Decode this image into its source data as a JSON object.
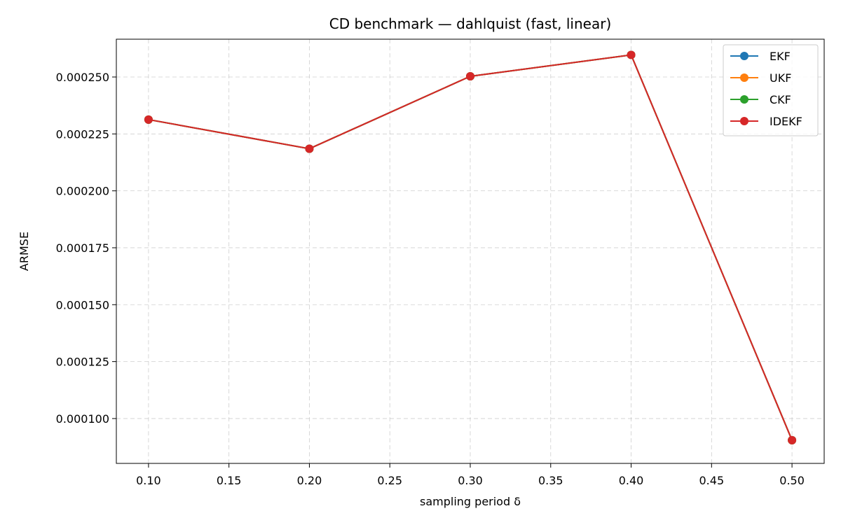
{
  "chart_data": {
    "type": "line",
    "title": "CD benchmark — dahlquist (fast, linear)",
    "xlabel": "sampling period δ",
    "ylabel": "ARMSE",
    "x": [
      0.1,
      0.2,
      0.3,
      0.4,
      0.5
    ],
    "xlim": [
      0.08,
      0.52
    ],
    "ylim": [
      8.03e-05,
      0.0002666
    ],
    "x_ticks": [
      0.1,
      0.15,
      0.2,
      0.25,
      0.3,
      0.35,
      0.4,
      0.45,
      0.5
    ],
    "x_tick_labels": [
      "0.10",
      "0.15",
      "0.20",
      "0.25",
      "0.30",
      "0.35",
      "0.40",
      "0.45",
      "0.50"
    ],
    "y_ticks": [
      0.0001,
      0.000125,
      0.00015,
      0.000175,
      0.0002,
      0.000225,
      0.00025
    ],
    "y_tick_labels": [
      "0.000100",
      "0.000125",
      "0.000150",
      "0.000175",
      "0.000200",
      "0.000225",
      "0.000250"
    ],
    "grid": true,
    "legend_position": "top-right",
    "series": [
      {
        "name": "EKF",
        "color": "#1f77b4",
        "values": [
          0.0002313,
          0.0002185,
          0.0002503,
          0.0002597,
          9.05e-05
        ]
      },
      {
        "name": "UKF",
        "color": "#ff7f0e",
        "values": [
          0.0002313,
          0.0002185,
          0.0002503,
          0.0002597,
          9.05e-05
        ]
      },
      {
        "name": "CKF",
        "color": "#2ca02c",
        "values": [
          0.0002313,
          0.0002185,
          0.0002503,
          0.0002597,
          9.05e-05
        ]
      },
      {
        "name": "IDEKF",
        "color": "#d62728",
        "values": [
          0.0002313,
          0.0002185,
          0.0002503,
          0.0002597,
          9.05e-05
        ]
      }
    ]
  }
}
